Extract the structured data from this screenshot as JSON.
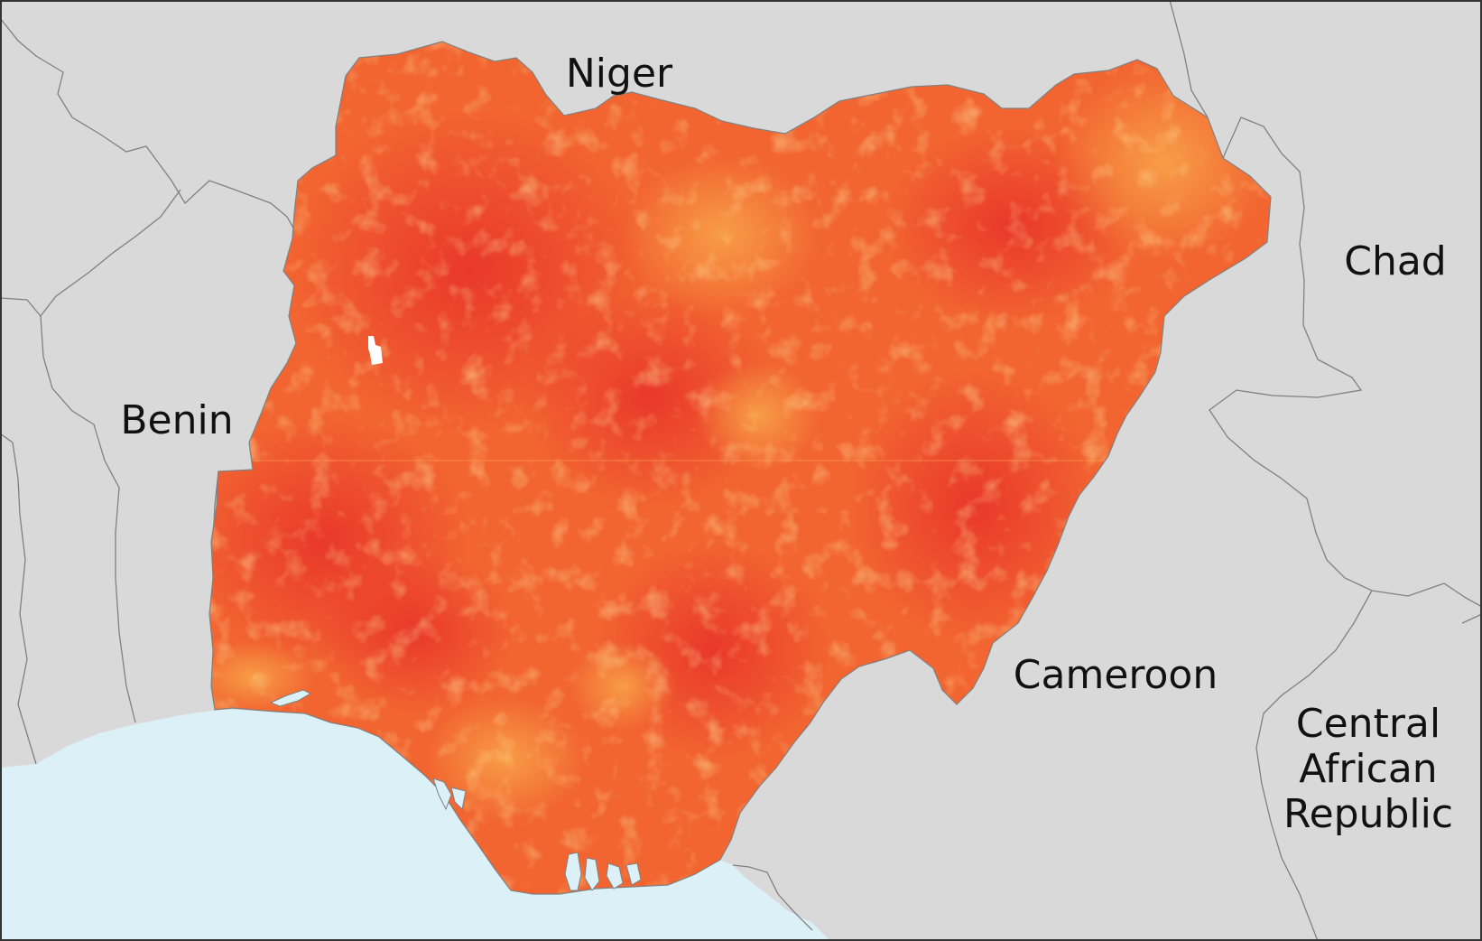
{
  "map": {
    "colors": {
      "ocean": "#dcf0f7",
      "neighbor_land": "#d9d9d9",
      "border_line": "#808080",
      "nigeria_high": "#e8332a",
      "nigeria_mid": "#f26430",
      "nigeria_low": "#f8a048",
      "nodata": "#ffffff",
      "frame": "#333333"
    },
    "labels": {
      "niger": "Niger",
      "chad": "Chad",
      "benin": "Benin",
      "cameroon": "Cameroon",
      "car_line1": "Central",
      "car_line2": "African",
      "car_line3": "Republic"
    }
  }
}
